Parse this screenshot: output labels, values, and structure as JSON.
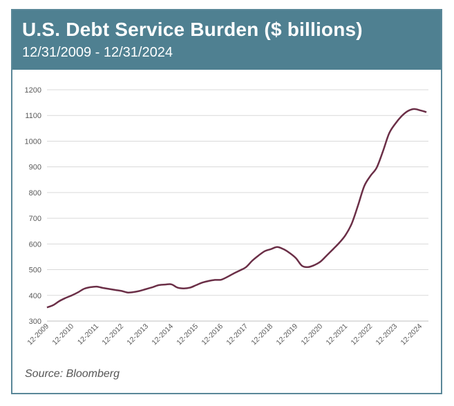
{
  "header": {
    "title": "U.S. Debt Service Burden ($ billions)",
    "subtitle": "12/31/2009 - 12/31/2024"
  },
  "source": "Source: Bloomberg",
  "colors": {
    "header_bg": "#4f8091",
    "line": "#6b2f47",
    "grid": "#d9d9d9"
  },
  "chart_data": {
    "type": "line",
    "title": "U.S. Debt Service Burden ($ billions)",
    "subtitle": "12/31/2009 - 12/31/2024",
    "xlabel": "",
    "ylabel": "",
    "ylim": [
      300,
      1200
    ],
    "yticks": [
      300,
      400,
      500,
      600,
      700,
      800,
      900,
      1000,
      1100,
      1200
    ],
    "xticks": [
      {
        "label": "12-2009",
        "x": 2009.92
      },
      {
        "label": "12-2010",
        "x": 2010.92
      },
      {
        "label": "12-2011",
        "x": 2011.92
      },
      {
        "label": "12-2012",
        "x": 2012.92
      },
      {
        "label": "12-2013",
        "x": 2013.92
      },
      {
        "label": "12-2014",
        "x": 2014.92
      },
      {
        "label": "12-2015",
        "x": 2015.92
      },
      {
        "label": "12-2016",
        "x": 2016.92
      },
      {
        "label": "12-2017",
        "x": 2017.92
      },
      {
        "label": "12-2018",
        "x": 2018.92
      },
      {
        "label": "12-2019",
        "x": 2019.92
      },
      {
        "label": "12-2020",
        "x": 2020.92
      },
      {
        "label": "12-2021",
        "x": 2021.92
      },
      {
        "label": "12-2022",
        "x": 2022.92
      },
      {
        "label": "12-2023",
        "x": 2023.92
      },
      {
        "label": "12-2024",
        "x": 2024.92
      }
    ],
    "xlim": [
      2009.92,
      2025.25
    ],
    "grid": true,
    "legend": "none",
    "series": [
      {
        "x": [
          2009.92,
          2010.17,
          2010.42,
          2010.67,
          2010.92,
          2011.17,
          2011.42,
          2011.67,
          2011.92,
          2012.17,
          2012.42,
          2012.67,
          2012.92,
          2013.17,
          2013.42,
          2013.67,
          2013.92,
          2014.17,
          2014.42,
          2014.67,
          2014.92,
          2015.17,
          2015.42,
          2015.67,
          2015.92,
          2016.17,
          2016.42,
          2016.67,
          2016.92,
          2017.17,
          2017.42,
          2017.67,
          2017.92,
          2018.17,
          2018.42,
          2018.67,
          2018.92,
          2019.17,
          2019.42,
          2019.67,
          2019.92,
          2020.17,
          2020.42,
          2020.67,
          2020.92,
          2021.17,
          2021.42,
          2021.67,
          2021.92,
          2022.17,
          2022.42,
          2022.67,
          2022.92,
          2023.17,
          2023.42,
          2023.67,
          2023.92,
          2024.17,
          2024.42,
          2024.67,
          2024.92,
          2025.17
        ],
        "values": [
          353,
          362,
          378,
          390,
          400,
          412,
          426,
          432,
          434,
          429,
          425,
          421,
          417,
          411,
          413,
          418,
          425,
          432,
          440,
          442,
          443,
          430,
          427,
          430,
          440,
          450,
          456,
          460,
          461,
          472,
          485,
          497,
          510,
          535,
          555,
          572,
          580,
          588,
          580,
          565,
          545,
          515,
          510,
          518,
          532,
          556,
          580,
          605,
          635,
          680,
          750,
          825,
          865,
          897,
          960,
          1030,
          1068,
          1097,
          1117,
          1125,
          1120,
          1113
        ]
      }
    ]
  }
}
